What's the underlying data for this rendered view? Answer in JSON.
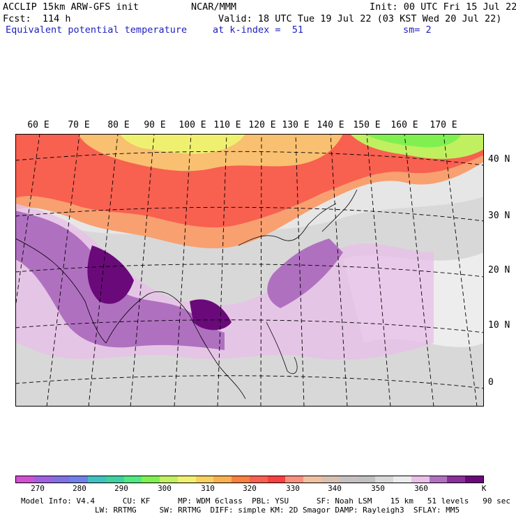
{
  "header": {
    "title_left": "ACCLIP 15km ARW-GFS init",
    "center": "NCAR/MMM",
    "init": "Init: 00 UTC Fri 15 Jul 22",
    "fcst": "Fcst:  114 h",
    "valid": "Valid: 18 UTC Tue 19 Jul 22 (03 KST Wed 20 Jul 22)",
    "field": "Equivalent potential temperature",
    "level": "at k-index =  51",
    "smooth": "sm= 2"
  },
  "map": {
    "lon_labels": [
      "60 E",
      "70 E",
      "80 E",
      "90 E",
      "100 E",
      "110 E",
      "120 E",
      "130 E",
      "140 E",
      "150 E",
      "160 E",
      "170 E"
    ],
    "lat_labels": [
      "40 N",
      "30 N",
      "20 N",
      "10 N",
      "0"
    ]
  },
  "colorbar": {
    "colors": [
      "#d050d0",
      "#a060e0",
      "#8070e0",
      "#7080e8",
      "#40c0c0",
      "#40d0a0",
      "#50e880",
      "#80f050",
      "#c0f060",
      "#f0f070",
      "#f8d060",
      "#f8b050",
      "#f88040",
      "#f86050",
      "#f84040",
      "#f89080",
      "#f0c0a0",
      "#d8c0b0",
      "#c8c0c0",
      "#c0c0c0",
      "#d8d8d8",
      "#ececec",
      "#e8c0e8",
      "#b070c0",
      "#8a309a",
      "#6a0a7a"
    ],
    "tick_labels": [
      "270",
      "280",
      "290",
      "300",
      "310",
      "320",
      "330",
      "340",
      "350",
      "360"
    ],
    "unit": "K"
  },
  "footer": {
    "line1": "Model Info: V4.4      CU: KF      MP: WDM 6class  PBL: YSU      SF: Noah LSM    15 km   51 levels   90 sec",
    "line2": "                LW: RRTMG     SW: RRTMG  DIFF: simple KM: 2D Smagor DAMP: Rayleigh3  SFLAY: MM5"
  }
}
